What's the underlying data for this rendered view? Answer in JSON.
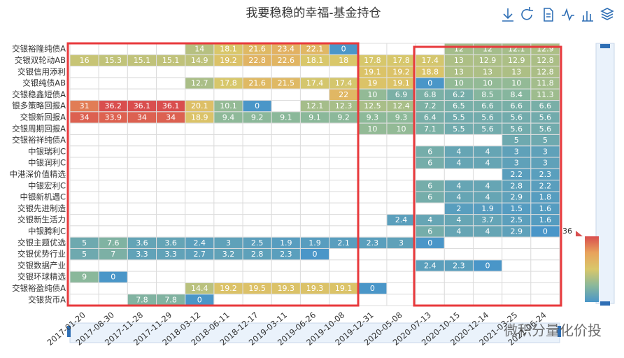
{
  "chart_data": {
    "type": "heatmap",
    "title": "我要稳稳的幸福-基金持仓",
    "x": [
      "2017-01-20",
      "2017-08-30",
      "2017-11-28",
      "2017-11-29",
      "2018-03-12",
      "2018-06-11",
      "2018-12-17",
      "2019-03-11",
      "2019-06-26",
      "2019-10-08",
      "2019-12-31",
      "2020-05-08",
      "2020-07-13",
      "2020-10-15",
      "2020-12-14",
      "2021-03-25",
      "2021-06-24"
    ],
    "y": [
      "交银裕隆纯债A",
      "交银双轮动AB",
      "交银信用添利",
      "交银纯债AB",
      "交银稳鑫短债A",
      "银多策略回报A",
      "交银新回报A",
      "交银周期回报A",
      "交银裕祥纯债A",
      "中银瑞利C",
      "中银润利C",
      "中港深价值精选",
      "中银宏利C",
      "中银新机遇C",
      "交银先进制造",
      "交银新生活力",
      "中银腾利C",
      "交银主题优选",
      "交银优势行业",
      "交银数据产业",
      "交银环球精选",
      "交银裕盈纯债A",
      "交银货币A"
    ],
    "values": [
      [
        null,
        null,
        null,
        null,
        14,
        18.1,
        21.6,
        23.4,
        22.1,
        0,
        null,
        null,
        null,
        12,
        12,
        12.1,
        12.9
      ],
      [
        16,
        15.3,
        15.1,
        15.1,
        14.9,
        19.2,
        22.8,
        22.6,
        18.1,
        18,
        17.8,
        17.8,
        17.4,
        13,
        12.9,
        12.9,
        12.8
      ],
      [
        null,
        null,
        null,
        null,
        null,
        null,
        null,
        null,
        null,
        null,
        19.1,
        19.2,
        18.8,
        13,
        13,
        13,
        12.8
      ],
      [
        null,
        null,
        null,
        null,
        12.7,
        17.8,
        21.6,
        21.5,
        17.4,
        17.4,
        19,
        19.1,
        0,
        10,
        10,
        10,
        11.8
      ],
      [
        null,
        null,
        null,
        null,
        null,
        null,
        null,
        null,
        null,
        22,
        10,
        6.9,
        6.8,
        6.2,
        8.5,
        8.4,
        11.3
      ],
      [
        31,
        36.2,
        36.1,
        36.1,
        20.1,
        10.1,
        0,
        null,
        12.1,
        12.3,
        12.5,
        12.4,
        7.2,
        6.5,
        6.6,
        6.6,
        6.6
      ],
      [
        34,
        33.9,
        34,
        34,
        18.9,
        9.4,
        9.2,
        9.1,
        9.1,
        9.2,
        9.3,
        9.3,
        6.4,
        5.5,
        5.6,
        5.6,
        5.6
      ],
      [
        null,
        null,
        null,
        null,
        null,
        null,
        null,
        null,
        null,
        null,
        10,
        10,
        7.1,
        5.5,
        5.6,
        5.6,
        5.6
      ],
      [
        null,
        null,
        null,
        null,
        null,
        null,
        null,
        null,
        null,
        null,
        null,
        null,
        null,
        null,
        null,
        5,
        5
      ],
      [
        null,
        null,
        null,
        null,
        null,
        null,
        null,
        null,
        null,
        null,
        null,
        null,
        6,
        4,
        4,
        3,
        3
      ],
      [
        null,
        null,
        null,
        null,
        null,
        null,
        null,
        null,
        null,
        null,
        null,
        null,
        6,
        4,
        4,
        3,
        3
      ],
      [
        null,
        null,
        null,
        null,
        null,
        null,
        null,
        null,
        null,
        null,
        null,
        null,
        null,
        null,
        null,
        2.2,
        2.3
      ],
      [
        null,
        null,
        null,
        null,
        null,
        null,
        null,
        null,
        null,
        null,
        null,
        null,
        6,
        4,
        4,
        2.8,
        2.2
      ],
      [
        null,
        null,
        null,
        null,
        null,
        null,
        null,
        null,
        null,
        null,
        null,
        null,
        6,
        4,
        4,
        2.9,
        1.8
      ],
      [
        null,
        null,
        null,
        null,
        null,
        null,
        null,
        null,
        null,
        null,
        null,
        null,
        null,
        2,
        1.9,
        1.5,
        1.6
      ],
      [
        null,
        null,
        null,
        null,
        null,
        null,
        null,
        null,
        null,
        null,
        null,
        2.4,
        4,
        4,
        3.7,
        2.5,
        1.6
      ],
      [
        null,
        null,
        null,
        null,
        null,
        null,
        null,
        null,
        null,
        null,
        null,
        null,
        6,
        4,
        4,
        2.9,
        0
      ],
      [
        5,
        7.6,
        3.6,
        3.6,
        2.4,
        3,
        2.5,
        1.9,
        1.9,
        2.1,
        2.3,
        3,
        0,
        null,
        null,
        null,
        null
      ],
      [
        5,
        7,
        3.3,
        3.3,
        2.7,
        3.2,
        2.8,
        2.3,
        0,
        null,
        null,
        null,
        null,
        null,
        null,
        null,
        null
      ],
      [
        null,
        null,
        null,
        null,
        null,
        null,
        null,
        null,
        null,
        null,
        null,
        null,
        2.4,
        2.3,
        0,
        null,
        null
      ],
      [
        9,
        0,
        null,
        null,
        null,
        null,
        null,
        null,
        null,
        null,
        null,
        null,
        null,
        null,
        null,
        null,
        null
      ],
      [
        null,
        null,
        null,
        null,
        14.4,
        19.2,
        19.5,
        19.3,
        19.3,
        19.1,
        0,
        null,
        null,
        null,
        null,
        null,
        null
      ],
      [
        null,
        null,
        7.8,
        7.8,
        0,
        null,
        null,
        null,
        null,
        null,
        null,
        null,
        null,
        null,
        null,
        null,
        null
      ]
    ],
    "visual_map": {
      "min": 0,
      "max": 36,
      "colors": [
        "#4a96c8",
        "#8ab89b",
        "#d9c76a",
        "#e8a35c",
        "#d94e4e"
      ]
    },
    "watermark": "微积分量化价投"
  }
}
